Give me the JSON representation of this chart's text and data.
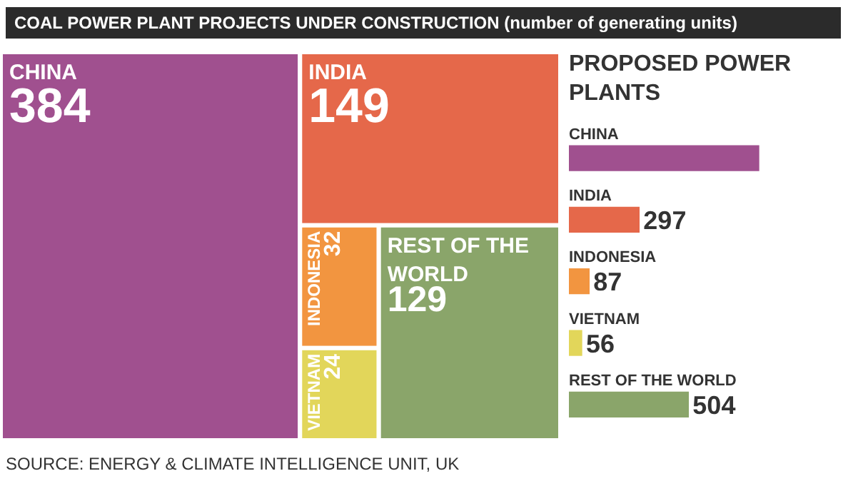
{
  "chart_data": [
    {
      "type": "other",
      "title": "COAL POWER PLANT PROJECTS UNDER CONSTRUCTION (number of generating units)",
      "categories": [
        "CHINA",
        "INDIA",
        "INDONESIA",
        "VIETNAM",
        "REST OF THE WORLD"
      ],
      "values": [
        384,
        149,
        32,
        24,
        129
      ],
      "colors": [
        "#a0508f",
        "#e5684a",
        "#f29540",
        "#e2d65a",
        "#8aa56a"
      ],
      "data_labels": true,
      "annotations": [
        "SOURCE: ENERGY & CLIMATE INTELLIGENCE UNIT, UK"
      ]
    },
    {
      "type": "bar",
      "orientation": "horizontal",
      "title": "PROPOSED POWER PLANTS",
      "categories": [
        "CHINA",
        "INDIA",
        "INDONESIA",
        "VIETNAM",
        "REST OF THE WORLD"
      ],
      "values": [
        800,
        297,
        87,
        56,
        504
      ],
      "colors": [
        "#a0508f",
        "#e5684a",
        "#f29540",
        "#e2d65a",
        "#8aa56a"
      ],
      "value_labels": [
        null,
        "297",
        "87",
        "56",
        "504"
      ]
    }
  ]
}
